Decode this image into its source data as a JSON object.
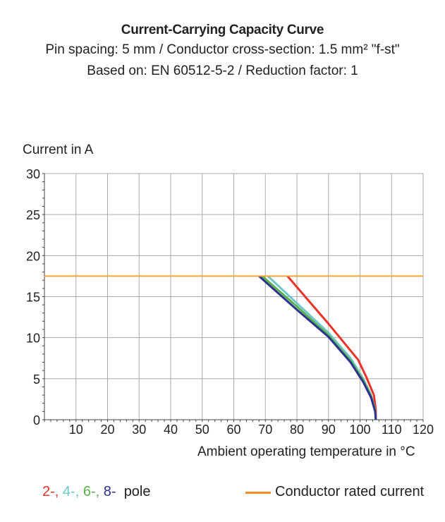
{
  "chart_data": {
    "type": "line",
    "title": "Current-Carrying Capacity Curve",
    "subtitle": [
      "Pin spacing: 5 mm / Conductor cross-section: 1.5 mm² \"f-st\"",
      "Based on: EN 60512-5-2 / Reduction factor: 1"
    ],
    "xlabel": "Ambient operating temperature in °C",
    "ylabel": "Current in A",
    "xlim": [
      0,
      120
    ],
    "ylim": [
      0,
      30
    ],
    "xticks": [
      10,
      20,
      30,
      40,
      50,
      60,
      70,
      80,
      90,
      100,
      110,
      120
    ],
    "yticks": [
      0,
      5,
      10,
      15,
      20,
      25,
      30
    ],
    "grid": true,
    "series": [
      {
        "name": "Conductor rated current",
        "color": "#f5a030",
        "x": [
          0,
          120
        ],
        "y": [
          17.5,
          17.5
        ]
      },
      {
        "name": "2-",
        "color": "#e8332a",
        "x": [
          77,
          90,
          99.4,
          102,
          104.4,
          105,
          105
        ],
        "y": [
          17.5,
          11.7,
          7.3,
          5.2,
          3.0,
          1.2,
          0
        ]
      },
      {
        "name": "4-",
        "color": "#6cc8c8",
        "x": [
          70.8,
          80,
          90,
          97,
          101,
          103.5,
          104.8,
          105
        ],
        "y": [
          17.5,
          14.2,
          10.6,
          7.5,
          5.0,
          3.0,
          1.2,
          0
        ]
      },
      {
        "name": "6-",
        "color": "#5ab14a",
        "x": [
          69,
          80,
          90,
          97,
          101,
          103.5,
          104.8,
          105
        ],
        "y": [
          17.5,
          13.8,
          10.3,
          7.2,
          4.8,
          2.9,
          1.1,
          0
        ]
      },
      {
        "name": "8-",
        "color": "#2e3190",
        "x": [
          68,
          80,
          90,
          97,
          101,
          103.5,
          104.8,
          105
        ],
        "y": [
          17.5,
          13.4,
          10.1,
          7.0,
          4.6,
          2.7,
          1.0,
          0
        ]
      }
    ]
  },
  "legend": {
    "poles": [
      "2-",
      ", ",
      "4-",
      ", ",
      "6-",
      ", ",
      "8-"
    ],
    "pole_label": "pole",
    "rated_label": "Conductor rated current"
  }
}
